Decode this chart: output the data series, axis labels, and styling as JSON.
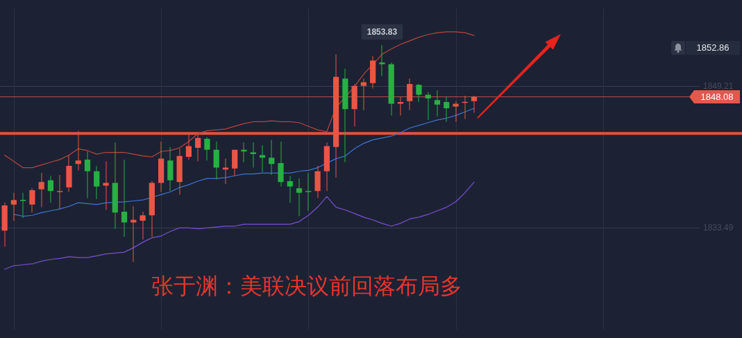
{
  "chart_data": {
    "type": "candlestick",
    "title": "张于渊：美联决议前回落布局多",
    "categories": [
      null,
      null,
      null,
      null,
      null,
      null,
      null,
      null,
      null,
      null,
      null,
      null,
      null,
      null,
      null,
      null,
      null,
      null,
      null,
      null,
      null,
      null,
      null,
      null,
      null,
      null,
      null,
      null,
      null,
      null,
      null,
      null,
      null,
      null,
      null,
      null,
      null,
      null,
      null,
      null,
      null,
      null,
      null,
      null,
      null,
      null,
      null,
      null,
      null,
      null,
      null,
      null,
      null,
      null,
      null,
      null,
      null,
      null,
      null,
      null,
      null,
      null,
      null,
      null,
      null,
      null,
      null,
      null,
      null,
      null,
      null,
      null,
      null,
      null,
      null,
      null
    ],
    "ohlc": [
      [
        1833.2,
        1836.3,
        1831.4,
        1836.0
      ],
      [
        1836.1,
        1837.4,
        1834.3,
        1836.6
      ],
      [
        1836.6,
        1837.4,
        1834.6,
        1836.5
      ],
      [
        1836.1,
        1837.9,
        1835.2,
        1837.7
      ],
      [
        1837.8,
        1839.6,
        1835.8,
        1838.6
      ],
      [
        1838.8,
        1839.3,
        1836.3,
        1837.6
      ],
      [
        1837.5,
        1839.4,
        1835.6,
        1837.6
      ],
      [
        1838.0,
        1841.6,
        1837.5,
        1840.4
      ],
      [
        1840.6,
        1844.3,
        1839.9,
        1841.0
      ],
      [
        1841.1,
        1842.0,
        1836.8,
        1839.8
      ],
      [
        1839.8,
        1840.4,
        1836.7,
        1838.1
      ],
      [
        1838.2,
        1840.9,
        1835.5,
        1838.5
      ],
      [
        1838.5,
        1843.0,
        1833.4,
        1835.2
      ],
      [
        1835.3,
        1841.1,
        1832.5,
        1834.1
      ],
      [
        1834.1,
        1835.9,
        1829.7,
        1834.4
      ],
      [
        1834.3,
        1835.3,
        1832.2,
        1834.9
      ],
      [
        1834.9,
        1838.7,
        1832.5,
        1838.5
      ],
      [
        1838.5,
        1843.1,
        1837.5,
        1841.2
      ],
      [
        1841.0,
        1842.5,
        1837.6,
        1838.8
      ],
      [
        1838.6,
        1842.3,
        1837.2,
        1841.5
      ],
      [
        1841.4,
        1843.9,
        1841.1,
        1842.6
      ],
      [
        1842.4,
        1843.9,
        1840.9,
        1843.5
      ],
      [
        1843.4,
        1843.6,
        1841.0,
        1842.2
      ],
      [
        1842.2,
        1843.1,
        1838.9,
        1840.2
      ],
      [
        1840.0,
        1841.2,
        1838.4,
        1840.2
      ],
      [
        1840.1,
        1842.2,
        1839.3,
        1842.2
      ],
      [
        1842.2,
        1843.0,
        1840.8,
        1842.0
      ],
      [
        1841.9,
        1843.0,
        1840.2,
        1841.7
      ],
      [
        1841.6,
        1842.7,
        1839.7,
        1841.3
      ],
      [
        1841.3,
        1843.3,
        1839.4,
        1840.6
      ],
      [
        1840.7,
        1843.1,
        1838.1,
        1838.6
      ],
      [
        1838.7,
        1839.3,
        1836.3,
        1838.1
      ],
      [
        1837.9,
        1839.0,
        1834.8,
        1837.4
      ],
      [
        1837.6,
        1839.6,
        1835.4,
        1837.5
      ],
      [
        1837.6,
        1840.4,
        1836.8,
        1839.8
      ],
      [
        1839.8,
        1843.0,
        1837.6,
        1842.6
      ],
      [
        1842.5,
        1852.8,
        1839.1,
        1850.3
      ],
      [
        1850.1,
        1851.2,
        1840.8,
        1846.7
      ],
      [
        1846.7,
        1849.5,
        1844.8,
        1849.3
      ],
      [
        1849.3,
        1850.1,
        1846.6,
        1849.7
      ],
      [
        1849.6,
        1852.6,
        1849.0,
        1852.1
      ],
      [
        1851.9,
        1853.83,
        1850.4,
        1851.7
      ],
      [
        1851.7,
        1851.9,
        1846.0,
        1847.3
      ],
      [
        1847.3,
        1848.1,
        1846.0,
        1847.5
      ],
      [
        1847.6,
        1850.1,
        1846.6,
        1849.5
      ],
      [
        1849.4,
        1849.5,
        1847.5,
        1848.3
      ],
      [
        1848.3,
        1848.6,
        1845.5,
        1847.9
      ],
      [
        1847.7,
        1848.8,
        1845.9,
        1847.2
      ],
      [
        1847.5,
        1848.1,
        1845.3,
        1846.8
      ],
      [
        1847.0,
        1847.6,
        1845.3,
        1847.3
      ],
      [
        1847.4,
        1848.2,
        1845.6,
        1847.5
      ],
      [
        1847.6,
        1848.2,
        1846.3,
        1848.08
      ],
      null,
      null,
      null,
      null,
      null,
      null,
      null,
      null,
      null,
      null,
      null,
      null,
      null,
      null,
      null,
      null,
      null,
      null,
      null,
      null,
      null,
      null,
      null,
      null
    ],
    "colors": [
      "#eb5545",
      "#eb5545",
      "#27b043",
      "#eb5545",
      "#eb5545",
      "#27b043",
      "#eb5545",
      "#eb5545",
      "#eb5545",
      "#27b043",
      "#27b043",
      "#eb5545",
      "#27b043",
      "#27b043",
      "#eb5545",
      "#eb5545",
      "#eb5545",
      "#eb5545",
      "#27b043",
      "#eb5545",
      "#eb5545",
      "#eb5545",
      "#27b043",
      "#27b043",
      "#eb5545",
      "#eb5545",
      "#27b043",
      "#27b043",
      "#27b043",
      "#27b043",
      "#27b043",
      "#27b043",
      "#27b043",
      "#27b043",
      "#eb5545",
      "#eb5545",
      "#eb5545",
      "#27b043",
      "#eb5545",
      "#eb5545",
      "#eb5545",
      "#27b043",
      "#27b043",
      "#eb5545",
      "#eb5545",
      "#27b043",
      "#27b043",
      "#27b043",
      "#27b043",
      "#eb5545",
      "#eb5545",
      "#eb5545",
      null,
      null,
      null,
      null,
      null,
      null,
      null,
      null,
      null,
      null,
      null,
      null,
      null,
      null,
      null,
      null,
      null,
      null,
      null,
      null,
      null,
      null,
      null,
      null
    ],
    "series": [
      {
        "type": "line",
        "color": "#b8463e",
        "values": [
          1841.6,
          1840.9,
          1840.2,
          1840.2,
          1840.5,
          1840.8,
          1841.1,
          1841.6,
          1842.3,
          1842.1,
          1841.7,
          1841.9,
          1841.9,
          1841.9,
          1841.7,
          1841.5,
          1841.4,
          1842.0,
          1842.1,
          1842.4,
          1843.1,
          1844.0,
          1844.3,
          1844.4,
          1844.5,
          1844.8,
          1845.1,
          1845.3,
          1845.3,
          1845.4,
          1845.3,
          1845.3,
          1845.2,
          1844.8,
          1844.4,
          1844.2,
          1846.9,
          null,
          1849.2,
          1850.6,
          1851.7,
          1852.8,
          1853.4,
          1853.9,
          1854.3,
          1854.7,
          1855.0,
          1855.2,
          1855.3,
          1855.3,
          1855.2,
          1854.9,
          null,
          null,
          null,
          null,
          null,
          null,
          null,
          null,
          null,
          null,
          null,
          null,
          null,
          null,
          null,
          null,
          null,
          null,
          null,
          null,
          null,
          null,
          null,
          null
        ]
      },
      {
        "type": "line",
        "color": "#3d74d6",
        "values": [
          null,
          1835.0,
          1834.8,
          1834.9,
          1835.2,
          1835.4,
          1835.6,
          1835.9,
          1836.3,
          1836.2,
          1836.1,
          1836.3,
          null,
          1836.4,
          1836.5,
          1836.6,
          null,
          1837.2,
          1837.5,
          1838.0,
          1838.3,
          1838.7,
          1839.0,
          1839.0,
          1839.1,
          1839.3,
          1839.5,
          1839.5,
          1839.6,
          1839.6,
          null,
          1839.6,
          1839.8,
          1839.9,
          1840.2,
          null,
          1841.2,
          1841.5,
          1842.3,
          1842.9,
          1843.3,
          1843.5,
          1843.7,
          1844.1,
          1844.6,
          1844.9,
          1845.2,
          1845.5,
          1845.7,
          1846.0,
          1846.4,
          1846.8,
          null,
          null,
          null,
          null,
          null,
          null,
          null,
          null,
          null,
          null,
          null,
          null,
          null,
          null,
          null,
          null,
          null,
          null,
          null,
          null,
          null,
          null,
          null,
          null
        ]
      },
      {
        "type": "line",
        "color": "#7a4fd6",
        "values": [
          1828.9,
          1829.3,
          1829.4,
          1829.5,
          1829.8,
          1830.0,
          1830.1,
          1830.3,
          1830.2,
          1830.2,
          1830.4,
          1830.6,
          1830.7,
          1830.8,
          1831.3,
          1831.9,
          1832.4,
          1832.6,
          1833.1,
          1833.5,
          1833.5,
          1833.4,
          1833.5,
          1833.6,
          1833.7,
          1833.7,
          1833.9,
          1833.9,
          1833.9,
          1833.9,
          1833.9,
          1833.9,
          1834.2,
          1834.9,
          1835.8,
          1837.0,
          1835.8,
          1835.5,
          1835.1,
          1834.7,
          1834.4,
          1834.0,
          1833.7,
          1834.0,
          1834.5,
          1834.7,
          1835.0,
          1835.4,
          1835.8,
          1836.4,
          1837.4,
          1838.6,
          null,
          null,
          null,
          null,
          null,
          null,
          null,
          null,
          null,
          null,
          null,
          null,
          null,
          null,
          null,
          null,
          null,
          null,
          null,
          null,
          null,
          null,
          null,
          null
        ]
      }
    ],
    "ylim": [
      1822.2,
      1857.9
    ],
    "yticks": [
      1833.49,
      1849.21
    ],
    "tick_labels": "y",
    "grid": true,
    "ref_lines": [
      {
        "axis": "y",
        "value": 1844.0,
        "color": "#e4513f"
      },
      {
        "axis": "y",
        "value": 1848.08,
        "label": "1848.08",
        "color": "#e4574b"
      }
    ],
    "annotations": [
      {
        "text": "1853.83",
        "y": 1853.83
      },
      "1852.86"
    ]
  }
}
